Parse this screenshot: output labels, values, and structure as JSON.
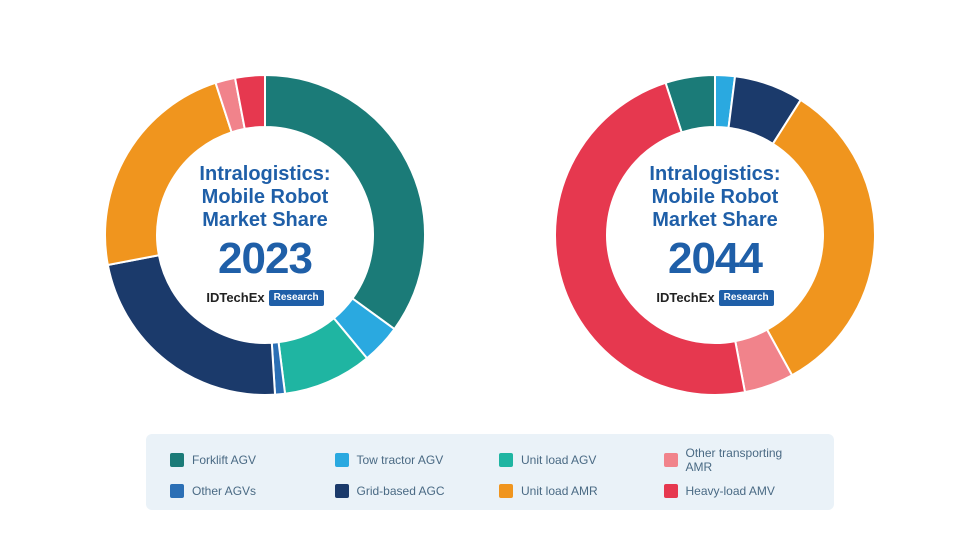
{
  "categories": [
    {
      "key": "forklift_agv",
      "label": "Forklift AGV",
      "color": "#1b7b78"
    },
    {
      "key": "tow_tractor",
      "label": "Tow tractor AGV",
      "color": "#2aa9e0"
    },
    {
      "key": "unit_load_agv",
      "label": "Unit load AGV",
      "color": "#1fb5a2"
    },
    {
      "key": "other_amr",
      "label": "Other transporting AMR",
      "color": "#f1838b"
    },
    {
      "key": "other_agvs",
      "label": "Other AGVs",
      "color": "#2b6fb5"
    },
    {
      "key": "grid_agc",
      "label": "Grid-based AGC",
      "color": "#1b3a6b"
    },
    {
      "key": "unit_load_amr",
      "label": "Unit load AMR",
      "color": "#f0951e"
    },
    {
      "key": "heavy_amv",
      "label": "Heavy-load AMV",
      "color": "#e6384f"
    }
  ],
  "charts": [
    {
      "title_lines": [
        "Intralogistics:",
        "Mobile Robot",
        "Market Share"
      ],
      "year": "2023",
      "brand_main": "IDTechEx",
      "brand_badge": "Research",
      "start_angle_deg": 0,
      "slices_order": [
        "forklift_agv",
        "tow_tractor",
        "unit_load_agv",
        "other_agvs",
        "grid_agc",
        "unit_load_amr",
        "other_amr",
        "heavy_amv"
      ],
      "values": {
        "forklift_agv": 35,
        "tow_tractor": 4,
        "unit_load_agv": 9,
        "other_agvs": 1,
        "grid_agc": 23,
        "unit_load_amr": 23,
        "other_amr": 2,
        "heavy_amv": 3
      }
    },
    {
      "title_lines": [
        "Intralogistics:",
        "Mobile Robot",
        "Market Share"
      ],
      "year": "2044",
      "brand_main": "IDTechEx",
      "brand_badge": "Research",
      "start_angle_deg": -18,
      "slices_order": [
        "forklift_agv",
        "tow_tractor",
        "unit_load_agv",
        "other_agvs",
        "grid_agc",
        "unit_load_amr",
        "other_amr",
        "heavy_amv"
      ],
      "values": {
        "forklift_agv": 5,
        "tow_tractor": 2,
        "unit_load_agv": 0,
        "other_agvs": 0,
        "grid_agc": 7,
        "unit_load_amr": 33,
        "other_amr": 5,
        "heavy_amv": 48
      }
    }
  ],
  "donut_style": {
    "outer_radius": 160,
    "inner_radius": 108,
    "gap_color": "#ffffff",
    "gap_width": 2
  },
  "legend_style": {
    "background": "#eaf2f8",
    "text_color": "#4a6a84",
    "font_size": 12
  },
  "text_style": {
    "title_color": "#1f5fa8",
    "title_fontsize": 20,
    "year_fontsize": 44,
    "brand_color": "#222222",
    "brand_badge_bg": "#1f5fa8",
    "brand_badge_fg": "#ffffff"
  }
}
